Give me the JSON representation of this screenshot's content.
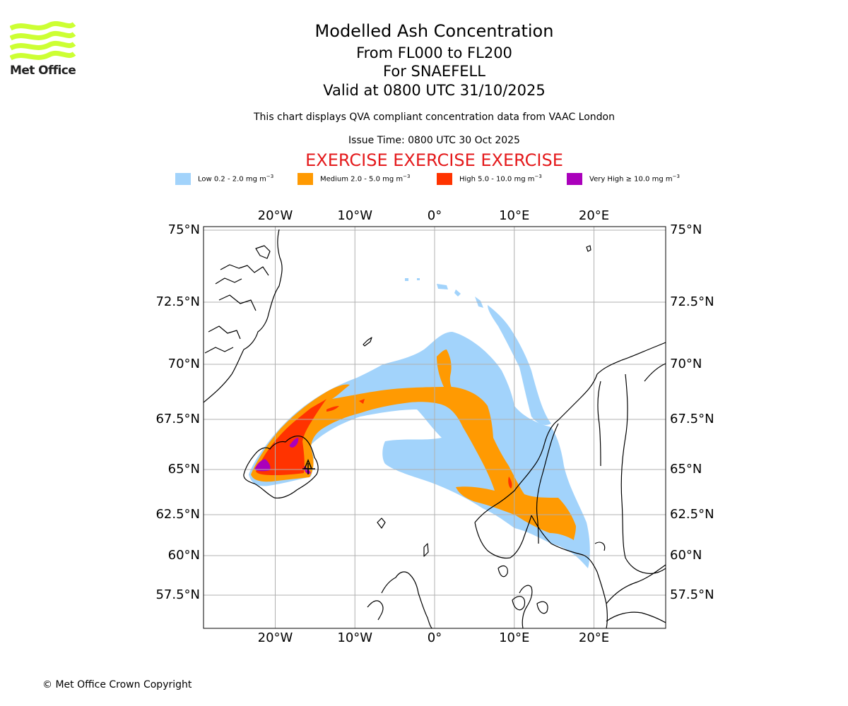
{
  "header": {
    "title": "Modelled Ash Concentration",
    "levels": "From FL000 to FL200",
    "volcano": "For SNAEFELL",
    "valid": "Valid at 0800 UTC 31/10/2025",
    "description": "This chart displays QVA compliant concentration data from VAAC London",
    "issue": "Issue Time: 0800 UTC 30 Oct 2025",
    "exercise": "EXERCISE EXERCISE EXERCISE"
  },
  "logo": {
    "text": "Met Office",
    "color": "#ccff33",
    "text_color": "#222222"
  },
  "legend": [
    {
      "label": "Low 0.2 - 2.0 mg m",
      "unit_exp": "−3",
      "color": "#a2d3fb"
    },
    {
      "label": "Medium 2.0 - 5.0 mg m",
      "unit_exp": "−3",
      "color": "#ff9a02"
    },
    {
      "label": "High 5.0 - 10.0 mg m",
      "unit_exp": "−3",
      "color": "#ff3300"
    },
    {
      "label": "Very High  ≥  10.0 mg m",
      "unit_exp": "−3",
      "color": "#aa00bb"
    }
  ],
  "map": {
    "lon_range": [
      -29,
      29
    ],
    "lat_range": [
      55.7,
      75.1
    ],
    "lon_ticks": [
      {
        "value": -20,
        "label": "20°W"
      },
      {
        "value": -10,
        "label": "10°W"
      },
      {
        "value": 0,
        "label": "0°"
      },
      {
        "value": 10,
        "label": "10°E"
      },
      {
        "value": 20,
        "label": "20°E"
      }
    ],
    "lat_ticks": [
      {
        "value": 75,
        "label": "75°N"
      },
      {
        "value": 72.5,
        "label": "72.5°N"
      },
      {
        "value": 70,
        "label": "70°N"
      },
      {
        "value": 67.5,
        "label": "67.5°N"
      },
      {
        "value": 65,
        "label": "65°N"
      },
      {
        "value": 62.5,
        "label": "62.5°N"
      },
      {
        "value": 60,
        "label": "60°N"
      },
      {
        "value": 57.5,
        "label": "57.5°N"
      }
    ],
    "source": {
      "name": "Snaefell",
      "lon": -15.4,
      "lat": 64.8
    },
    "grid": true,
    "coastline_color": "#000000",
    "grid_color": "#b0b0b0"
  },
  "footer": {
    "copyright": "© Met Office Crown Copyright"
  }
}
